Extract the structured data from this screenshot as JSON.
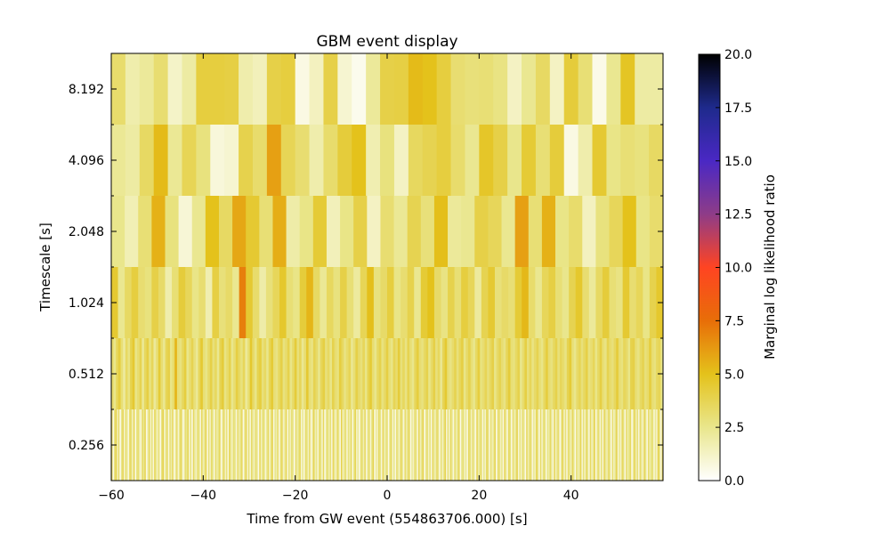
{
  "chart_data": {
    "type": "heatmap",
    "title": "GBM event display",
    "xlabel": "Time from GW event (554863706.000) [s]",
    "ylabel": "Timescale [s]",
    "xlim": [
      -60,
      60
    ],
    "xticks": [
      -60,
      -40,
      -20,
      0,
      20,
      40
    ],
    "xtick_labels": [
      "−60",
      "−40",
      "−20",
      "0",
      "20",
      "40"
    ],
    "yticks": [
      0.256,
      0.512,
      1.024,
      2.048,
      4.096,
      8.192
    ],
    "ytick_labels": [
      "0.256",
      "0.512",
      "1.024",
      "2.048",
      "4.096",
      "8.192"
    ],
    "colorbar": {
      "label": "Marginal log likelihood ratio",
      "range": [
        0,
        20
      ],
      "ticks": [
        0,
        2.5,
        5,
        7.5,
        10,
        12.5,
        15,
        17.5,
        20
      ],
      "tick_labels": [
        "0.0",
        "2.5",
        "5.0",
        "7.5",
        "10.0",
        "12.5",
        "15.0",
        "17.5",
        "20.0"
      ],
      "colormap": "gist_heat_r-like",
      "stops": [
        {
          "v": 0.0,
          "color": "#ffffff"
        },
        {
          "v": 2.5,
          "color": "#e9e68c"
        },
        {
          "v": 5.0,
          "color": "#e4c21b"
        },
        {
          "v": 7.5,
          "color": "#e86e08"
        },
        {
          "v": 10.0,
          "color": "#ff4422"
        },
        {
          "v": 12.5,
          "color": "#8e3c88"
        },
        {
          "v": 15.0,
          "color": "#4a28c4"
        },
        {
          "v": 17.5,
          "color": "#1e2a8c"
        },
        {
          "v": 20.0,
          "color": "#000000"
        }
      ]
    },
    "rows": [
      {
        "timescale": 8.192,
        "values": [
          3.2,
          1.8,
          2.2,
          3.1,
          1.2,
          2.0,
          4.2,
          4.2,
          4.1,
          1.8,
          1.5,
          4.0,
          4.2,
          0.6,
          1.4,
          4.0,
          1.0,
          0.4,
          2.2,
          4.0,
          4.1,
          5.2,
          5.0,
          4.2,
          3.1,
          2.9,
          3.0,
          2.7,
          1.3,
          2.4,
          3.4,
          1.3,
          4.3,
          3.0,
          0.5,
          2.4,
          4.8,
          2.0,
          2.0
        ]
      },
      {
        "timescale": 4.096,
        "values": [
          2.3,
          2.0,
          3.4,
          5.2,
          2.3,
          3.7,
          2.8,
          0.8,
          1.0,
          3.9,
          3.2,
          6.0,
          3.7,
          3.1,
          1.8,
          3.2,
          4.3,
          5.0,
          1.7,
          2.8,
          1.3,
          3.5,
          3.8,
          4.2,
          3.2,
          2.4,
          4.7,
          4.0,
          2.5,
          4.4,
          3.0,
          4.3,
          0.6,
          1.8,
          4.5,
          2.6,
          3.0,
          2.8,
          3.4
        ]
      },
      {
        "timescale": 2.048,
        "values": [
          2.5,
          1.6,
          3.0,
          5.5,
          2.8,
          0.9,
          2.4,
          5.0,
          3.4,
          5.8,
          4.5,
          3.0,
          5.6,
          1.9,
          2.6,
          4.4,
          1.5,
          2.6,
          4.0,
          1.3,
          3.1,
          2.3,
          3.8,
          2.9,
          5.1,
          2.2,
          2.4,
          4.0,
          3.6,
          2.4,
          6.0,
          3.0,
          5.5,
          2.6,
          3.2,
          1.4,
          2.8,
          3.6,
          5.0,
          2.6,
          3.2
        ]
      },
      {
        "timescale": 1.024,
        "values": [
          4.5,
          2.4,
          3.4,
          4.2,
          3.1,
          2.8,
          4.0,
          3.3,
          1.8,
          3.0,
          4.3,
          3.6,
          2.6,
          3.1,
          1.7,
          4.1,
          2.9,
          3.3,
          2.4,
          7.0,
          4.5,
          3.2,
          1.9,
          2.9,
          3.6,
          4.6,
          3.0,
          2.6,
          4.3,
          5.4,
          3.4,
          2.3,
          3.5,
          2.8,
          4.0,
          3.0,
          2.1,
          3.7,
          5.1,
          2.8,
          3.3,
          4.2,
          2.6,
          3.1,
          3.9,
          2.4,
          4.4,
          5.0,
          3.3,
          2.7,
          3.9,
          3.0,
          4.2,
          3.6,
          2.1,
          3.8,
          4.5,
          2.9,
          3.3,
          3.0,
          4.4,
          5.3,
          3.2,
          2.4,
          3.6,
          4.1,
          3.0,
          2.5,
          3.8,
          4.6,
          3.1,
          2.2,
          3.4,
          4.3,
          3.0,
          2.7,
          4.5,
          3.1,
          3.6,
          2.6,
          3.9,
          4.6
        ]
      },
      {
        "timescale": 0.512,
        "values": [
          3.3,
          2.5,
          3.6,
          4.2,
          3.0,
          2.1,
          3.4,
          2.7,
          3.9,
          4.5,
          2.6,
          3.1,
          3.8,
          2.3,
          3.5,
          4.1,
          2.8,
          3.6,
          2.2,
          3.0,
          4.4,
          3.1,
          2.4,
          3.7,
          4.0,
          2.6,
          3.2,
          5.4,
          3.0,
          2.8,
          3.5,
          4.2,
          2.5,
          3.1,
          3.8,
          2.9,
          2.3,
          3.6,
          4.5,
          3.0,
          2.6,
          3.3,
          4.0,
          2.9,
          3.5,
          2.4,
          3.8,
          4.3,
          2.7,
          3.2,
          3.9,
          2.5,
          3.1,
          4.1,
          3.4,
          2.8,
          3.6,
          2.2,
          3.0,
          4.6,
          3.3,
          2.6,
          3.8,
          4.2,
          2.9,
          3.4,
          2.5,
          3.7,
          4.4,
          3.0,
          2.7,
          3.5,
          4.0,
          2.8,
          3.2,
          3.9,
          2.6,
          3.3,
          4.3,
          2.9,
          3.6,
          2.4,
          3.1,
          4.5,
          3.0,
          2.7,
          3.8,
          3.3,
          2.5,
          3.6,
          4.1,
          2.9,
          3.4,
          2.6,
          3.9,
          3.1,
          2.8,
          4.2,
          3.5,
          2.7,
          3.2,
          3.7,
          2.4,
          3.0,
          4.0,
          3.3,
          2.9,
          3.6,
          2.6,
          3.8,
          4.4,
          3.1,
          2.5,
          3.4,
          3.9,
          2.8,
          3.3,
          4.1,
          3.0,
          2.6,
          3.7,
          3.2,
          4.3,
          2.9,
          3.5,
          2.7,
          3.8,
          3.0,
          2.5,
          3.6,
          4.2,
          3.1,
          2.8,
          3.4,
          3.9,
          2.6,
          3.3,
          4.0,
          2.9,
          3.5,
          2.4,
          3.7,
          4.5,
          3.0,
          2.7,
          3.2,
          3.8,
          2.9,
          3.6,
          4.1,
          2.6,
          3.3,
          3.9,
          3.0,
          2.5,
          3.4,
          4.2,
          2.8,
          3.1,
          3.7,
          2.9,
          3.5,
          4.0,
          2.6,
          3.3,
          3.8,
          3.1,
          2.7,
          3.6,
          4.3,
          3.0,
          2.8,
          3.4,
          3.9,
          2.5,
          3.2,
          4.1,
          2.9,
          3.6,
          2.7,
          3.3,
          3.8,
          3.0,
          2.6,
          3.5,
          4.2,
          3.1,
          2.8,
          3.4,
          3.9,
          2.9,
          3.6,
          3.2,
          2.7,
          3.8,
          4.4,
          3.0,
          2.5,
          3.3,
          3.7,
          2.9,
          3.5,
          4.0,
          2.8,
          3.1,
          3.6,
          2.6,
          3.4,
          4.1,
          3.0,
          2.7,
          3.8,
          3.2,
          2.9,
          3.5,
          4.3,
          3.1,
          2.8,
          3.6,
          3.3,
          2.6,
          3.9,
          4.0,
          3.0,
          2.7,
          3.4,
          3.8,
          2.9,
          3.2,
          4.2,
          3.1,
          2.8,
          3.5,
          3.7,
          2.6
        ]
      },
      {
        "timescale": 0.256,
        "values": [
          3.4,
          0.6,
          2.8,
          3.9,
          1.5,
          3.2,
          0.4,
          2.5,
          3.6,
          1.1,
          3.0,
          2.2,
          0.7,
          3.5,
          2.9,
          1.4,
          3.8,
          0.5,
          2.6,
          3.1,
          1.8,
          0.9,
          3.3,
          2.4,
          3.7,
          0.6,
          2.0,
          3.4,
          1.3,
          2.8,
          0.8,
          3.6,
          2.2,
          1.6,
          3.0,
          0.5,
          2.7,
          3.9,
          1.2,
          2.4,
          3.3,
          0.7,
          2.9,
          1.9,
          3.5,
          0.6,
          2.1,
          3.2,
          1.0,
          2.6,
          3.8,
          1.5,
          0.8,
          3.1,
          2.5,
          3.6,
          1.1,
          2.8,
          0.5,
          3.4,
          2.0,
          1.4,
          3.0,
          2.7,
          0.9,
          3.5,
          1.7,
          2.3,
          3.9,
          0.6,
          2.9,
          1.2,
          3.3,
          2.4,
          0.8,
          3.1,
          1.9,
          2.6,
          3.6,
          0.5,
          2.2,
          3.4,
          1.3,
          2.8,
          0.7,
          3.7,
          2.1,
          1.5,
          3.0,
          2.5,
          0.9,
          3.2,
          1.8,
          2.7,
          3.5,
          0.6,
          2.3,
          3.8,
          1.1,
          2.9,
          0.8,
          3.3,
          2.0,
          1.6,
          3.1,
          2.4,
          0.5,
          3.6,
          1.4,
          2.8,
          3.0,
          0.9,
          2.2,
          3.4,
          1.2,
          2.6,
          3.9,
          0.7,
          2.5,
          1.8,
          3.2,
          0.6,
          2.9,
          3.5,
          1.3,
          2.1,
          3.7,
          0.8,
          2.7,
          1.5,
          3.0,
          2.4,
          0.5,
          3.3,
          1.9,
          2.6,
          3.6,
          1.0,
          2.3,
          0.7,
          3.1,
          2.8,
          1.4,
          3.4,
          0.6,
          2.0,
          3.8,
          1.6,
          2.5,
          0.9,
          3.2,
          2.7,
          1.1,
          3.5,
          0.5,
          2.4,
          3.0,
          1.7,
          2.9,
          0.8,
          3.6,
          2.1,
          1.3,
          3.3,
          2.6,
          0.6,
          3.9,
          1.5,
          2.3,
          3.1,
          0.9,
          2.8,
          1.8,
          3.4,
          0.7,
          2.5,
          3.7,
          1.2,
          2.2,
          0.5,
          3.0,
          2.9,
          1.6,
          3.5,
          0.8,
          2.4,
          3.2,
          1.0,
          2.7,
          3.8,
          0.6,
          2.1,
          1.4,
          3.3,
          2.6,
          0.9,
          3.6,
          1.7,
          2.3,
          3.0,
          0.5,
          2.8,
          3.4,
          1.1,
          2.5,
          0.7,
          3.1,
          2.0,
          1.5,
          3.7,
          2.4,
          0.8,
          3.2,
          1.9,
          2.9,
          3.5,
          0.6,
          2.2,
          1.3,
          3.0,
          2.7,
          0.9,
          3.6,
          1.6,
          2.5,
          3.9,
          0.5,
          2.3,
          3.1,
          1.2,
          2.8,
          0.7,
          3.4,
          2.1,
          1.8,
          3.3,
          2.6,
          0.6,
          3.0,
          1.4,
          2.4,
          3.8,
          0.9,
          2.9,
          1.1,
          3.5,
          2.2,
          0.8,
          3.2,
          1.7,
          2.7,
          3.6,
          0.5,
          2.5,
          3.0,
          1.3,
          2.3,
          0.7,
          3.4,
          2.8,
          1.5,
          3.1,
          2.0,
          0.6,
          3.7,
          1.9,
          2.6,
          3.3,
          0.9,
          2.4,
          1.2,
          3.5,
          2.9,
          0.8,
          3.0,
          1.6,
          2.2,
          3.8,
          0.5,
          2.7,
          3.2,
          1.4,
          2.5,
          0.7,
          3.6,
          2.1,
          1.0,
          3.4,
          2.8,
          0.6,
          3.1,
          1.8,
          2.3,
          3.9,
          0.9,
          2.6,
          1.3,
          3.0,
          2.4,
          0.5,
          3.5,
          1.7,
          2.9,
          3.2,
          0.8,
          2.2,
          1.5,
          3.7,
          2.6,
          0.6,
          3.3,
          1.1,
          2.8,
          3.0,
          0.7,
          2.5,
          1.9,
          3.4,
          2.0,
          0.9,
          3.6,
          1.4,
          2.7,
          3.1,
          0.5,
          2.3,
          3.8,
          1.2,
          2.9,
          0.8,
          3.2,
          2.4,
          1.6,
          3.5,
          2.6,
          0.6,
          3.0,
          1.8,
          2.1,
          3.7,
          0.9,
          2.8,
          1.3,
          3.3,
          2.5,
          0.7,
          3.4,
          1.5,
          2.2,
          3.9,
          0.5,
          2.6,
          3.1,
          1.0,
          2.9,
          0.8,
          3.6,
          2.3,
          1.7,
          3.2,
          2.7,
          0.6,
          3.0,
          1.4,
          2.5,
          3.8,
          0.9,
          2.4,
          1.2,
          3.5,
          2.8,
          0.7,
          3.1,
          1.9,
          2.6,
          3.4,
          0.5,
          2.2,
          3.7,
          1.6,
          2.9,
          0.8,
          3.3,
          2.0,
          1.3,
          3.6,
          2.5,
          0.6,
          3.2,
          1.8,
          2.7,
          3.0,
          0.9,
          2.3,
          1.1,
          3.9,
          2.6,
          0.7,
          3.4
        ]
      }
    ]
  }
}
